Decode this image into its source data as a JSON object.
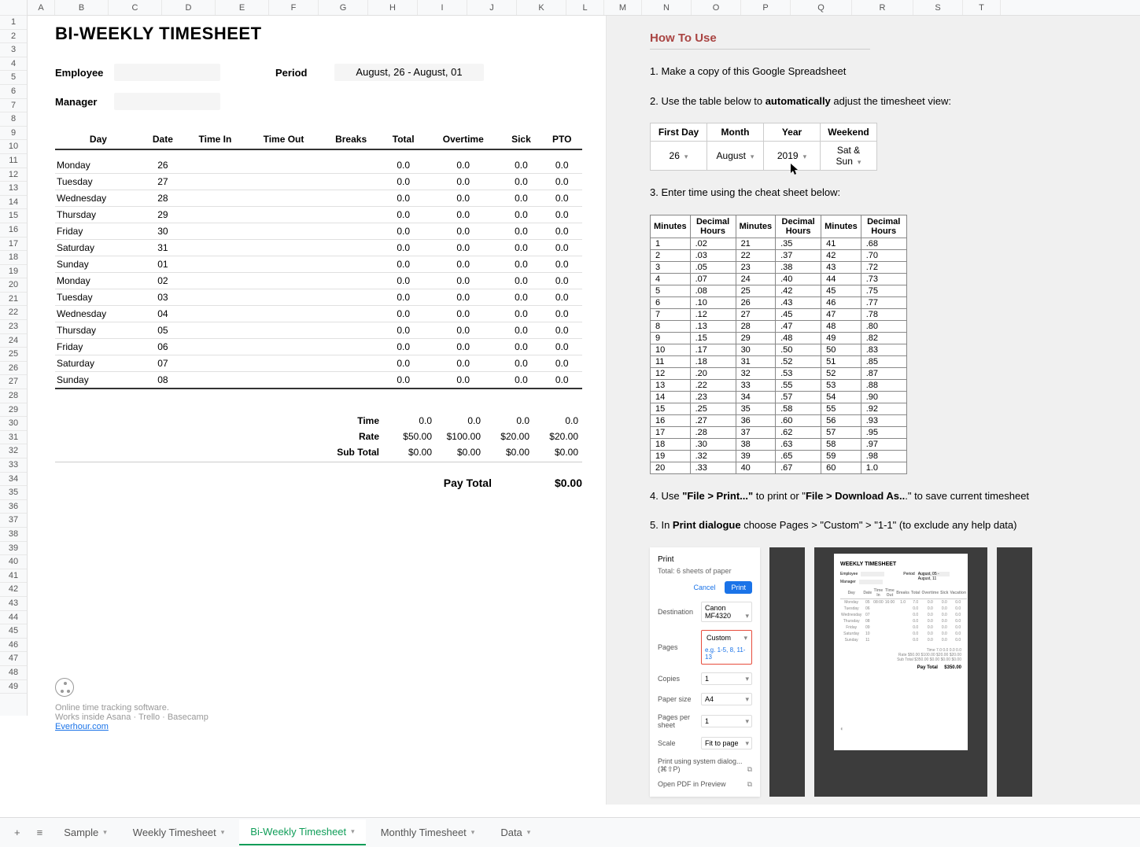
{
  "columns": [
    "A",
    "B",
    "C",
    "D",
    "E",
    "F",
    "G",
    "H",
    "I",
    "J",
    "K",
    "L",
    "M",
    "N",
    "O",
    "P",
    "Q",
    "R",
    "S",
    "T"
  ],
  "rowCount": 49,
  "title": "BI-WEEKLY TIMESHEET",
  "fields": {
    "employee_label": "Employee",
    "manager_label": "Manager",
    "period_label": "Period",
    "period_value": "August, 26 - August, 01"
  },
  "timesheet": {
    "headers": [
      "Day",
      "Date",
      "Time In",
      "Time Out",
      "Breaks",
      "Total",
      "Overtime",
      "Sick",
      "PTO"
    ],
    "rows": [
      {
        "day": "Monday",
        "date": "26",
        "ti": "",
        "to": "",
        "br": "",
        "tot": "0.0",
        "ot": "0.0",
        "sk": "0.0",
        "pto": "0.0"
      },
      {
        "day": "Tuesday",
        "date": "27",
        "ti": "",
        "to": "",
        "br": "",
        "tot": "0.0",
        "ot": "0.0",
        "sk": "0.0",
        "pto": "0.0"
      },
      {
        "day": "Wednesday",
        "date": "28",
        "ti": "",
        "to": "",
        "br": "",
        "tot": "0.0",
        "ot": "0.0",
        "sk": "0.0",
        "pto": "0.0"
      },
      {
        "day": "Thursday",
        "date": "29",
        "ti": "",
        "to": "",
        "br": "",
        "tot": "0.0",
        "ot": "0.0",
        "sk": "0.0",
        "pto": "0.0"
      },
      {
        "day": "Friday",
        "date": "30",
        "ti": "",
        "to": "",
        "br": "",
        "tot": "0.0",
        "ot": "0.0",
        "sk": "0.0",
        "pto": "0.0"
      },
      {
        "day": "Saturday",
        "date": "31",
        "ti": "",
        "to": "",
        "br": "",
        "tot": "0.0",
        "ot": "0.0",
        "sk": "0.0",
        "pto": "0.0"
      },
      {
        "day": "Sunday",
        "date": "01",
        "ti": "",
        "to": "",
        "br": "",
        "tot": "0.0",
        "ot": "0.0",
        "sk": "0.0",
        "pto": "0.0"
      },
      {
        "day": "Monday",
        "date": "02",
        "ti": "",
        "to": "",
        "br": "",
        "tot": "0.0",
        "ot": "0.0",
        "sk": "0.0",
        "pto": "0.0"
      },
      {
        "day": "Tuesday",
        "date": "03",
        "ti": "",
        "to": "",
        "br": "",
        "tot": "0.0",
        "ot": "0.0",
        "sk": "0.0",
        "pto": "0.0"
      },
      {
        "day": "Wednesday",
        "date": "04",
        "ti": "",
        "to": "",
        "br": "",
        "tot": "0.0",
        "ot": "0.0",
        "sk": "0.0",
        "pto": "0.0"
      },
      {
        "day": "Thursday",
        "date": "05",
        "ti": "",
        "to": "",
        "br": "",
        "tot": "0.0",
        "ot": "0.0",
        "sk": "0.0",
        "pto": "0.0"
      },
      {
        "day": "Friday",
        "date": "06",
        "ti": "",
        "to": "",
        "br": "",
        "tot": "0.0",
        "ot": "0.0",
        "sk": "0.0",
        "pto": "0.0"
      },
      {
        "day": "Saturday",
        "date": "07",
        "ti": "",
        "to": "",
        "br": "",
        "tot": "0.0",
        "ot": "0.0",
        "sk": "0.0",
        "pto": "0.0"
      },
      {
        "day": "Sunday",
        "date": "08",
        "ti": "",
        "to": "",
        "br": "",
        "tot": "0.0",
        "ot": "0.0",
        "sk": "0.0",
        "pto": "0.0"
      }
    ]
  },
  "totals": {
    "time_label": "Time",
    "time_vals": [
      "0.0",
      "0.0",
      "0.0",
      "0.0"
    ],
    "rate_label": "Rate",
    "rate_vals": [
      "$50.00",
      "$100.00",
      "$20.00",
      "$20.00"
    ],
    "sub_label": "Sub Total",
    "sub_vals": [
      "$0.00",
      "$0.00",
      "$0.00",
      "$0.00"
    ],
    "pay_label": "Pay Total",
    "pay_value": "$0.00"
  },
  "footer": {
    "line1": "Online time tracking software.",
    "line2": "Works inside Asana · Trello · Basecamp",
    "link": "Everhour.com"
  },
  "howto": {
    "title": "How To Use",
    "step1": "1. Make a copy of this Google Spreadsheet",
    "step2_a": "2. Use the table below to ",
    "step2_b": "automatically",
    "step2_c": " adjust the timesheet view:",
    "ctrl_headers": [
      "First Day",
      "Month",
      "Year",
      "Weekend"
    ],
    "ctrl_values": [
      "26",
      "August",
      "2019",
      "Sat & Sun"
    ],
    "step3": "3. Enter time using the cheat sheet below:",
    "cheat_headers": [
      "Minutes",
      "Decimal Hours",
      "Minutes",
      "Decimal Hours",
      "Minutes",
      "Decimal Hours"
    ],
    "cheat_rows": [
      [
        "1",
        ".02",
        "21",
        ".35",
        "41",
        ".68"
      ],
      [
        "2",
        ".03",
        "22",
        ".37",
        "42",
        ".70"
      ],
      [
        "3",
        ".05",
        "23",
        ".38",
        "43",
        ".72"
      ],
      [
        "4",
        ".07",
        "24",
        ".40",
        "44",
        ".73"
      ],
      [
        "5",
        ".08",
        "25",
        ".42",
        "45",
        ".75"
      ],
      [
        "6",
        ".10",
        "26",
        ".43",
        "46",
        ".77"
      ],
      [
        "7",
        ".12",
        "27",
        ".45",
        "47",
        ".78"
      ],
      [
        "8",
        ".13",
        "28",
        ".47",
        "48",
        ".80"
      ],
      [
        "9",
        ".15",
        "29",
        ".48",
        "49",
        ".82"
      ],
      [
        "10",
        ".17",
        "30",
        ".50",
        "50",
        ".83"
      ],
      [
        "11",
        ".18",
        "31",
        ".52",
        "51",
        ".85"
      ],
      [
        "12",
        ".20",
        "32",
        ".53",
        "52",
        ".87"
      ],
      [
        "13",
        ".22",
        "33",
        ".55",
        "53",
        ".88"
      ],
      [
        "14",
        ".23",
        "34",
        ".57",
        "54",
        ".90"
      ],
      [
        "15",
        ".25",
        "35",
        ".58",
        "55",
        ".92"
      ],
      [
        "16",
        ".27",
        "36",
        ".60",
        "56",
        ".93"
      ],
      [
        "17",
        ".28",
        "37",
        ".62",
        "57",
        ".95"
      ],
      [
        "18",
        ".30",
        "38",
        ".63",
        "58",
        ".97"
      ],
      [
        "19",
        ".32",
        "39",
        ".65",
        "59",
        ".98"
      ],
      [
        "20",
        ".33",
        "40",
        ".67",
        "60",
        "1.0"
      ]
    ],
    "step4_a": "4. Use ",
    "step4_b": "\"File > Print...\"",
    "step4_c": " to print or \"",
    "step4_d": "File > Download As..",
    "step4_e": ".\" to save current timesheet",
    "step5_a": "5. In ",
    "step5_b": "Print dialogue",
    "step5_c": " choose Pages > \"Custom\" > \"1-1\" (to exclude any help data)"
  },
  "print_dialog": {
    "title": "Print",
    "total": "Total: 6 sheets of paper",
    "cancel": "Cancel",
    "print": "Print",
    "dest_lbl": "Destination",
    "dest_val": "Canon MF4320",
    "pages_lbl": "Pages",
    "pages_val": "Custom",
    "pages_input": "e.g. 1-5, 8, 11-13",
    "copies_lbl": "Copies",
    "copies_val": "1",
    "paper_lbl": "Paper size",
    "paper_val": "A4",
    "pps_lbl": "Pages per sheet",
    "pps_val": "1",
    "scale_lbl": "Scale",
    "scale_val": "Fit to page",
    "sys": "Print using system dialog... (⌘⇧P)",
    "pdf": "Open PDF in Preview",
    "preview_title": "WEEKLY TIMESHEET"
  },
  "tabs": {
    "add": "+",
    "menu": "≡",
    "items": [
      {
        "label": "Sample",
        "active": false
      },
      {
        "label": "Weekly Timesheet",
        "active": false
      },
      {
        "label": "Bi-Weekly Timesheet",
        "active": true
      },
      {
        "label": "Monthly Timesheet",
        "active": false
      },
      {
        "label": "Data",
        "active": false
      }
    ]
  }
}
